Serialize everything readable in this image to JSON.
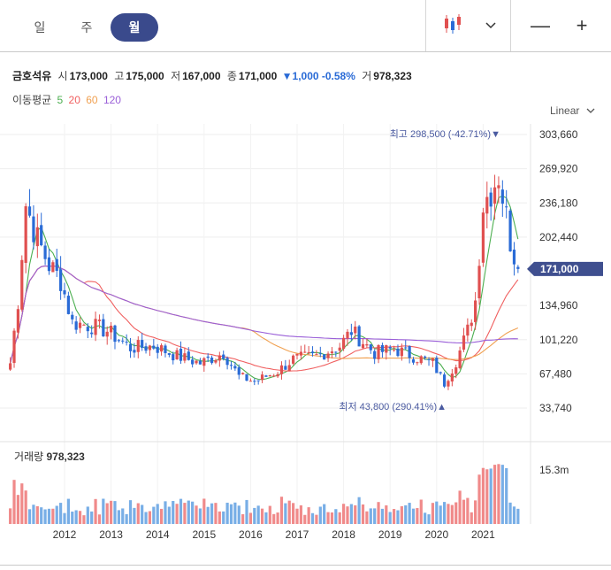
{
  "tabs": [
    {
      "label": "일",
      "active": false
    },
    {
      "label": "주",
      "active": false
    },
    {
      "label": "월",
      "active": true
    }
  ],
  "toolbar": {
    "chart_type_icon": "candlestick-icon",
    "dropdown_icon": "chevron-down-icon",
    "zoom_out_icon": "minus-icon",
    "zoom_in_icon": "plus-icon",
    "zoom_out_label": "—",
    "zoom_in_label": "+"
  },
  "quote": {
    "name": "금호석유",
    "open_label": "시",
    "open": "173,000",
    "high_label": "고",
    "high": "175,000",
    "low_label": "저",
    "low": "167,000",
    "close_label": "종",
    "close": "171,000",
    "change": "▼1,000 -0.58%",
    "volume_label": "거",
    "volume": "978,323"
  },
  "moving_average": {
    "label": "이동평균",
    "periods": [
      {
        "value": "5",
        "color": "#4caf50"
      },
      {
        "value": "20",
        "color": "#f06060"
      },
      {
        "value": "60",
        "color": "#f0a050"
      },
      {
        "value": "120",
        "color": "#9a5fd8"
      }
    ]
  },
  "scale_toggle": "Linear",
  "colors": {
    "up": "#e05050",
    "down": "#2a6bd6",
    "vol_up": "#f08a8a",
    "vol_down": "#78aee6",
    "current_tag": "#3f4f8f"
  },
  "volume_panel": {
    "label": "거래량",
    "value": "978,323",
    "max_label": "15.3m"
  },
  "chart_data": {
    "type": "candlestick",
    "y_ticks": [
      "303,660",
      "269,920",
      "236,180",
      "202,440",
      "134,960",
      "101,220",
      "67,480",
      "33,740"
    ],
    "x_ticks": [
      "2012",
      "2013",
      "2014",
      "2015",
      "2016",
      "2017",
      "2018",
      "2019",
      "2020",
      "2021"
    ],
    "ylim": [
      20000,
      320000
    ],
    "current_price_label": "171,000",
    "max_annotation": {
      "label": "최고 298,500 (-42.71%)▼",
      "date": "2021-05",
      "price": 298500
    },
    "min_annotation": {
      "label": "최저 43,800 (290.41%)▲",
      "date": "2020-03",
      "price": 43800
    },
    "price_waypoints": [
      [
        "2010-11",
        78000
      ],
      [
        "2011-01",
        140000
      ],
      [
        "2011-03",
        235000
      ],
      [
        "2011-06",
        200000
      ],
      [
        "2011-09",
        175000
      ],
      [
        "2011-12",
        160000
      ],
      [
        "2012-03",
        118000
      ],
      [
        "2012-08",
        115000
      ],
      [
        "2012-12",
        110000
      ],
      [
        "2013-06",
        93000
      ],
      [
        "2013-12",
        95000
      ],
      [
        "2014-06",
        85000
      ],
      [
        "2014-12",
        78000
      ],
      [
        "2015-06",
        88000
      ],
      [
        "2015-10",
        65000
      ],
      [
        "2016-02",
        60000
      ],
      [
        "2016-08",
        70000
      ],
      [
        "2016-12",
        82000
      ],
      [
        "2017-06",
        85000
      ],
      [
        "2017-12",
        95000
      ],
      [
        "2018-03",
        110000
      ],
      [
        "2018-09",
        88000
      ],
      [
        "2019-02",
        92000
      ],
      [
        "2019-07",
        85000
      ],
      [
        "2019-12",
        78000
      ],
      [
        "2020-03",
        58000
      ],
      [
        "2020-06",
        80000
      ],
      [
        "2020-09",
        110000
      ],
      [
        "2020-11",
        140000
      ],
      [
        "2021-01",
        235000
      ],
      [
        "2021-05",
        265000
      ],
      [
        "2021-08",
        200000
      ],
      [
        "2021-10",
        171000
      ]
    ],
    "moving_averages": {
      "ma5": "5",
      "ma20": "20",
      "ma60": "60",
      "ma120": "120"
    },
    "volume_range": [
      0,
      15300000
    ]
  }
}
